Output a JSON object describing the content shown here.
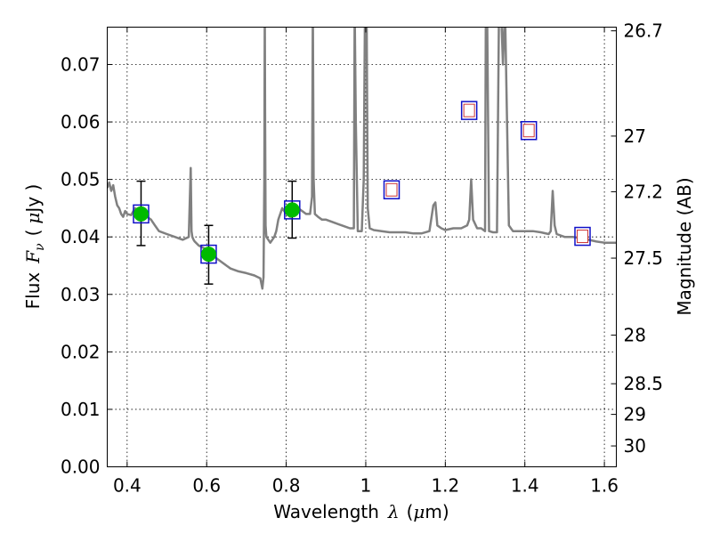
{
  "chart_data": {
    "type": "scatter",
    "xlabel_text": "Wavelength",
    "xlabel_symbol": "λ",
    "xlabel_unit_open": "(",
    "xlabel_unit_mu": "μ",
    "xlabel_unit_rest": "m)",
    "ylabel_text": "Flux",
    "ylabel_symbol_F": "F",
    "ylabel_symbol_sub": "ν",
    "ylabel_unit_open": "(",
    "ylabel_unit_mu": "μ",
    "ylabel_unit_rest": "Jy )",
    "y2label": "Magnitude (AB)",
    "xlim": [
      0.35,
      1.63
    ],
    "ylim": [
      0.0,
      0.0765
    ],
    "grid": true,
    "x_ticks": [
      0.4,
      0.6,
      0.8,
      1.0,
      1.2,
      1.4,
      1.6
    ],
    "x_tick_labels": [
      "0.4",
      "0.6",
      "0.8",
      "1",
      "1.2",
      "1.4",
      "1.6"
    ],
    "y_ticks": [
      0.0,
      0.01,
      0.02,
      0.03,
      0.04,
      0.05,
      0.06,
      0.07
    ],
    "y_tick_labels": [
      "0.00",
      "0.01",
      "0.02",
      "0.03",
      "0.04",
      "0.05",
      "0.06",
      "0.07"
    ],
    "mag_ticks": [
      26.7,
      27,
      27.2,
      27.5,
      28,
      28.5,
      29,
      30
    ],
    "mag_tick_labels": [
      "26.7",
      "27",
      "27.2",
      "27.5",
      "28",
      "28.5",
      "29",
      "30"
    ],
    "model_spectrum": {
      "color": "#808080",
      "x": [
        0.35,
        0.355,
        0.36,
        0.365,
        0.37,
        0.375,
        0.38,
        0.385,
        0.39,
        0.395,
        0.4,
        0.41,
        0.42,
        0.43,
        0.44,
        0.45,
        0.46,
        0.47,
        0.48,
        0.5,
        0.52,
        0.54,
        0.555,
        0.56,
        0.562,
        0.564,
        0.567,
        0.57,
        0.58,
        0.6,
        0.62,
        0.64,
        0.66,
        0.68,
        0.7,
        0.72,
        0.735,
        0.74,
        0.743,
        0.745,
        0.746,
        0.747,
        0.748,
        0.75,
        0.76,
        0.77,
        0.775,
        0.78,
        0.79,
        0.8,
        0.81,
        0.82,
        0.83,
        0.84,
        0.85,
        0.86,
        0.865,
        0.867,
        0.869,
        0.872,
        0.88,
        0.89,
        0.9,
        0.92,
        0.94,
        0.96,
        0.97,
        0.972,
        0.975,
        0.98,
        0.99,
        0.995,
        0.998,
        1.0,
        1.002,
        1.005,
        1.01,
        1.02,
        1.04,
        1.06,
        1.08,
        1.1,
        1.12,
        1.14,
        1.16,
        1.17,
        1.175,
        1.18,
        1.19,
        1.2,
        1.22,
        1.24,
        1.255,
        1.26,
        1.265,
        1.27,
        1.28,
        1.29,
        1.3,
        1.302,
        1.305,
        1.31,
        1.32,
        1.33,
        1.335,
        1.34,
        1.345,
        1.35,
        1.36,
        1.37,
        1.38,
        1.39,
        1.4,
        1.41,
        1.42,
        1.44,
        1.46,
        1.465,
        1.47,
        1.475,
        1.48,
        1.5,
        1.52,
        1.54,
        1.56,
        1.58,
        1.6,
        1.62,
        1.63
      ],
      "y": [
        0.0485,
        0.0495,
        0.048,
        0.049,
        0.047,
        0.0455,
        0.045,
        0.044,
        0.0435,
        0.0445,
        0.044,
        0.0438,
        0.045,
        0.0442,
        0.044,
        0.0435,
        0.043,
        0.042,
        0.041,
        0.0405,
        0.04,
        0.0395,
        0.04,
        0.052,
        0.041,
        0.04,
        0.0395,
        0.0392,
        0.0385,
        0.0378,
        0.0365,
        0.0355,
        0.0345,
        0.034,
        0.0337,
        0.0333,
        0.0328,
        0.031,
        0.033,
        0.05,
        0.08,
        0.06,
        0.042,
        0.04,
        0.039,
        0.04,
        0.041,
        0.043,
        0.045,
        0.044,
        0.0435,
        0.044,
        0.045,
        0.0445,
        0.044,
        0.044,
        0.047,
        0.08,
        0.05,
        0.044,
        0.0435,
        0.043,
        0.043,
        0.0425,
        0.042,
        0.0415,
        0.0415,
        0.08,
        0.06,
        0.041,
        0.041,
        0.05,
        0.08,
        0.08,
        0.08,
        0.045,
        0.0415,
        0.0412,
        0.041,
        0.0408,
        0.0408,
        0.0408,
        0.0406,
        0.0406,
        0.041,
        0.0455,
        0.046,
        0.042,
        0.0415,
        0.0412,
        0.0415,
        0.0415,
        0.042,
        0.043,
        0.05,
        0.043,
        0.0415,
        0.0415,
        0.041,
        0.08,
        0.08,
        0.041,
        0.0408,
        0.0408,
        0.08,
        0.08,
        0.07,
        0.08,
        0.042,
        0.041,
        0.041,
        0.041,
        0.041,
        0.041,
        0.041,
        0.0408,
        0.0405,
        0.041,
        0.048,
        0.042,
        0.0405,
        0.04,
        0.04,
        0.0398,
        0.0395,
        0.0392,
        0.039,
        0.039,
        0.039
      ]
    },
    "detections": {
      "marker_color": "#00bb00",
      "box_color": "#1010c8",
      "points": [
        {
          "x": 0.435,
          "y": 0.044,
          "yerr_low": 0.0385,
          "yerr_high": 0.0497
        },
        {
          "x": 0.605,
          "y": 0.037,
          "yerr_low": 0.0318,
          "yerr_high": 0.042
        },
        {
          "x": 0.815,
          "y": 0.0447,
          "yerr_low": 0.0398,
          "yerr_high": 0.0497
        }
      ]
    },
    "model_boxes": {
      "box_color": "#1010c8",
      "inner_color": "#cc3333",
      "points": [
        {
          "x": 0.435,
          "y": 0.044
        },
        {
          "x": 0.605,
          "y": 0.037
        },
        {
          "x": 0.815,
          "y": 0.0447
        },
        {
          "x": 1.065,
          "y": 0.0482
        },
        {
          "x": 1.26,
          "y": 0.062
        },
        {
          "x": 1.41,
          "y": 0.0585
        },
        {
          "x": 1.545,
          "y": 0.0401
        }
      ]
    },
    "predicted": {
      "points": [
        {
          "x": 1.065,
          "y": 0.0482
        },
        {
          "x": 1.26,
          "y": 0.062
        },
        {
          "x": 1.41,
          "y": 0.0585
        },
        {
          "x": 1.545,
          "y": 0.0401
        }
      ]
    }
  }
}
